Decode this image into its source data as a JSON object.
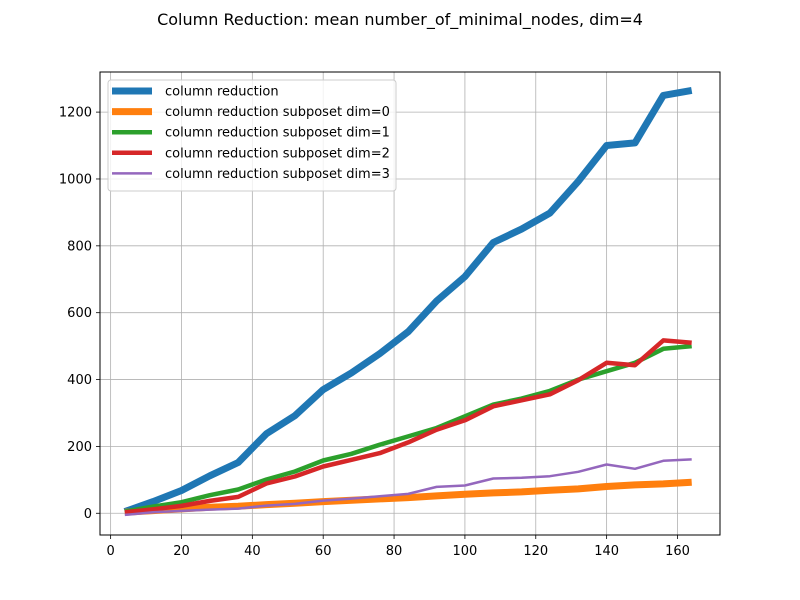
{
  "chart_data": {
    "type": "line",
    "title": "Column Reduction: mean number_of_minimal_nodes, dim=4",
    "xlabel": "",
    "ylabel": "",
    "xlim": [
      -3,
      172
    ],
    "ylim": [
      -65,
      1320
    ],
    "xticks": [
      "0",
      "20",
      "40",
      "60",
      "80",
      "100",
      "120",
      "140",
      "160"
    ],
    "yticks": [
      "0",
      "200",
      "400",
      "600",
      "800",
      "1000",
      "1200"
    ],
    "grid": true,
    "legend_position": "top-left",
    "series": [
      {
        "name": "column reduction",
        "color": "#1f77b4",
        "width": "thick",
        "x": [
          4,
          12,
          20,
          28,
          36,
          44,
          52,
          60,
          68,
          76,
          84,
          92,
          100,
          108,
          116,
          124,
          132,
          140,
          148,
          156,
          164
        ],
        "y": [
          5,
          35,
          68,
          112,
          152,
          238,
          292,
          370,
          420,
          478,
          543,
          635,
          708,
          810,
          850,
          898,
          993,
          1100,
          1108,
          1250,
          1265
        ]
      },
      {
        "name": "column reduction subposet dim=0",
        "color": "#ff7f0e",
        "width": "thick",
        "x": [
          4,
          12,
          20,
          28,
          36,
          44,
          52,
          60,
          68,
          76,
          84,
          92,
          100,
          108,
          116,
          124,
          132,
          140,
          148,
          156,
          164
        ],
        "y": [
          3,
          8,
          13,
          18,
          21,
          26,
          30,
          35,
          39,
          43,
          47,
          52,
          57,
          61,
          64,
          69,
          73,
          80,
          85,
          88,
          93
        ]
      },
      {
        "name": "column reduction subposet dim=1",
        "color": "#2ca02c",
        "width": "medium",
        "x": [
          4,
          12,
          20,
          28,
          36,
          44,
          52,
          60,
          68,
          76,
          84,
          92,
          100,
          108,
          116,
          124,
          132,
          140,
          148,
          156,
          164
        ],
        "y": [
          5,
          20,
          33,
          54,
          71,
          101,
          125,
          158,
          178,
          205,
          230,
          255,
          290,
          325,
          343,
          366,
          400,
          425,
          450,
          492,
          500
        ]
      },
      {
        "name": "column reduction subposet dim=2",
        "color": "#d62728",
        "width": "medium",
        "x": [
          4,
          12,
          20,
          28,
          36,
          44,
          52,
          60,
          68,
          76,
          84,
          92,
          100,
          108,
          116,
          124,
          132,
          140,
          148,
          156,
          164
        ],
        "y": [
          3,
          12,
          22,
          37,
          49,
          89,
          110,
          140,
          160,
          180,
          212,
          250,
          278,
          320,
          338,
          356,
          398,
          450,
          443,
          517,
          510
        ]
      },
      {
        "name": "column reduction subposet dim=3",
        "color": "#9467bd",
        "width": "thin",
        "x": [
          4,
          12,
          20,
          28,
          36,
          44,
          52,
          60,
          68,
          76,
          84,
          92,
          100,
          108,
          116,
          124,
          132,
          140,
          148,
          156,
          164
        ],
        "y": [
          -5,
          3,
          7,
          11,
          14,
          23,
          28,
          38,
          44,
          51,
          58,
          79,
          83,
          104,
          106,
          111,
          124,
          146,
          133,
          157,
          161
        ]
      }
    ]
  }
}
